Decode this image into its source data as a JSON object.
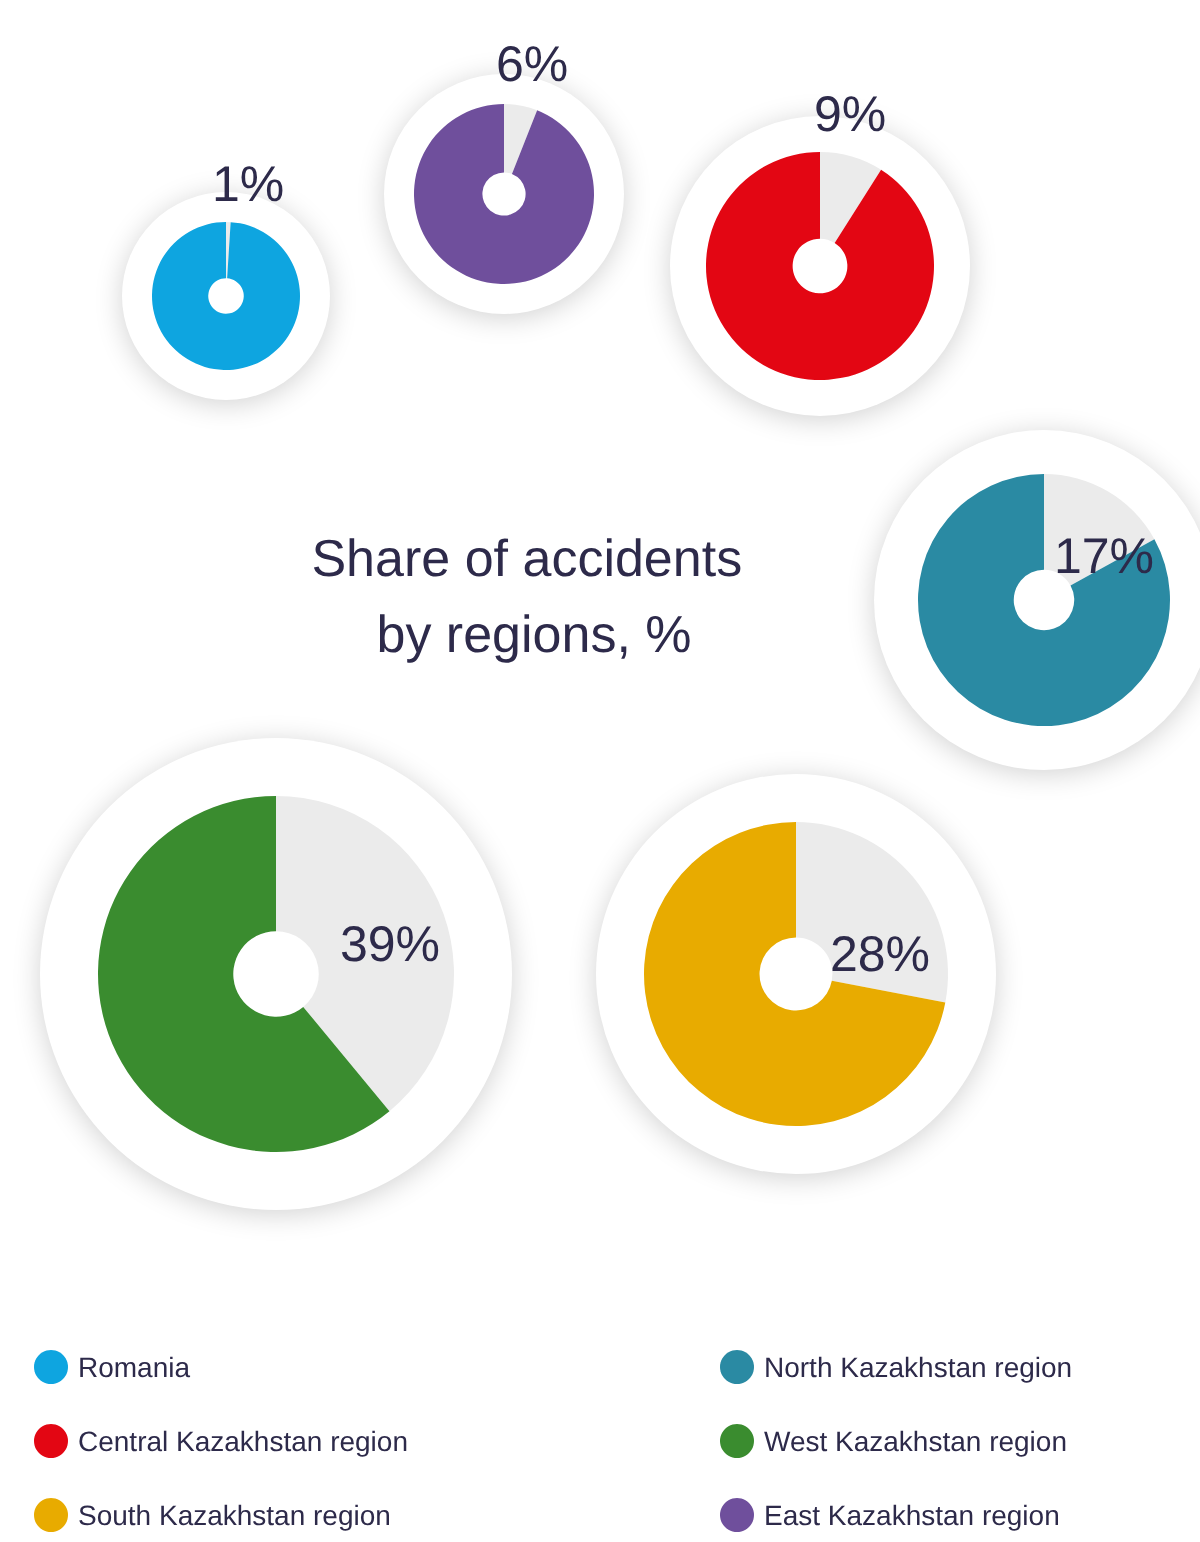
{
  "chart_data": [
    {
      "type": "donut",
      "title": "Share of accidents by regions, %",
      "categories": [
        null,
        "Romania"
      ],
      "values": [
        1,
        99
      ],
      "colors": [
        "#ebebeb",
        "#0ea5e0"
      ],
      "value_labels": [
        "1%",
        null
      ],
      "legend": "bottom"
    },
    {
      "type": "donut",
      "categories": [
        null,
        "East Kazakhstan region"
      ],
      "values": [
        6,
        94
      ],
      "colors": [
        "#ebebeb",
        "#6f4f9c"
      ],
      "value_labels": [
        "6%",
        null
      ],
      "legend": "bottom"
    },
    {
      "type": "donut",
      "categories": [
        null,
        "Central Kazakhstan region"
      ],
      "values": [
        9,
        91
      ],
      "colors": [
        "#ebebeb",
        "#e30613"
      ],
      "value_labels": [
        "9%",
        null
      ],
      "legend": "bottom"
    },
    {
      "type": "donut",
      "categories": [
        null,
        "North Kazakhstan region"
      ],
      "values": [
        17,
        83
      ],
      "colors": [
        "#ebebeb",
        "#2a8aa3"
      ],
      "value_labels": [
        "17%",
        null
      ],
      "legend": "bottom"
    },
    {
      "type": "donut",
      "categories": [
        null,
        "West Kazakhstan region"
      ],
      "values": [
        39,
        61
      ],
      "colors": [
        "#ebebeb",
        "#3a8c2f"
      ],
      "value_labels": [
        "39%",
        null
      ],
      "legend": "bottom"
    },
    {
      "type": "donut",
      "categories": [
        null,
        "South Kazakhstan region"
      ],
      "values": [
        28,
        72
      ],
      "colors": [
        "#ebebeb",
        "#e8ab00"
      ],
      "value_labels": [
        "28%",
        null
      ],
      "legend": "bottom"
    }
  ]
}
